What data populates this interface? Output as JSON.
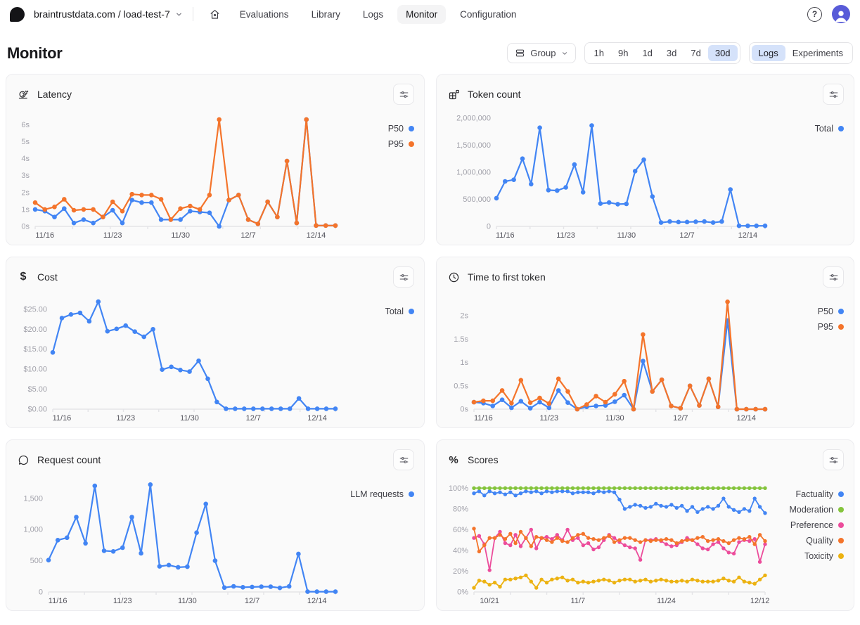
{
  "header": {
    "workspace": "braintrustdata.com / load-test-7",
    "nav": [
      {
        "label": "Evaluations",
        "active": false
      },
      {
        "label": "Library",
        "active": false
      },
      {
        "label": "Logs",
        "active": false
      },
      {
        "label": "Monitor",
        "active": true
      },
      {
        "label": "Configuration",
        "active": false
      }
    ],
    "help_label": "?"
  },
  "page": {
    "title": "Monitor"
  },
  "toolbar": {
    "group_label": "Group",
    "time_ranges": [
      "1h",
      "9h",
      "1d",
      "3d",
      "7d",
      "30d"
    ],
    "active_time_range": "30d",
    "view_toggle": [
      "Logs",
      "Experiments"
    ],
    "active_view": "Logs"
  },
  "colors": {
    "blue": "#4285f4",
    "orange": "#f4742b",
    "green": "#84c43c",
    "pink": "#ec4c9b",
    "yellow": "#ecb211",
    "active_pill": "#d5e2fa",
    "axis": "#e4e4e7",
    "y_label": "#a1a1aa",
    "x_label": "#52525b"
  },
  "charts": [
    {
      "id": "latency",
      "title": "Latency",
      "icon": "snail-icon",
      "chart_data": {
        "type": "line",
        "ylim": [
          0,
          6.55
        ],
        "yticks": [
          {
            "v": 0,
            "label": "0s"
          },
          {
            "v": 1,
            "label": "1s"
          },
          {
            "v": 2,
            "label": "2s"
          },
          {
            "v": 3,
            "label": "3s"
          },
          {
            "v": 4,
            "label": "4s"
          },
          {
            "v": 5,
            "label": "5s"
          },
          {
            "v": 6,
            "label": "6s"
          }
        ],
        "xticks": [
          {
            "i": 1,
            "label": "11/16"
          },
          {
            "i": 8,
            "label": "11/23"
          },
          {
            "i": 15,
            "label": "11/30"
          },
          {
            "i": 22,
            "label": "12/7"
          },
          {
            "i": 29,
            "label": "12/14"
          }
        ],
        "series": [
          {
            "name": "P50",
            "color": "#4285f4",
            "values": [
              1.0,
              0.9,
              0.55,
              1.05,
              0.2,
              0.4,
              0.2,
              0.55,
              0.95,
              0.2,
              1.55,
              1.4,
              1.4,
              0.4,
              0.4,
              0.4,
              0.9,
              0.85,
              0.8,
              0.0,
              1.55,
              1.85,
              0.4,
              0.15,
              1.45,
              0.55,
              3.85,
              0.2,
              6.3,
              0.05,
              0.05,
              0.05
            ]
          },
          {
            "name": "P95",
            "color": "#f4742b",
            "values": [
              1.4,
              1.0,
              1.15,
              1.6,
              0.95,
              1.0,
              1.0,
              0.55,
              1.45,
              0.9,
              1.9,
              1.85,
              1.85,
              1.6,
              0.4,
              1.05,
              1.2,
              1.0,
              1.85,
              6.3,
              1.55,
              1.85,
              0.4,
              0.15,
              1.45,
              0.55,
              3.85,
              0.2,
              6.3,
              0.05,
              0.05,
              0.05
            ]
          }
        ]
      }
    },
    {
      "id": "token-count",
      "title": "Token count",
      "icon": "token-icon",
      "chart_data": {
        "type": "line",
        "ylim": [
          0,
          2050000
        ],
        "yticks": [
          {
            "v": 0,
            "label": "0"
          },
          {
            "v": 500000,
            "label": "500,000"
          },
          {
            "v": 1000000,
            "label": "1,000,000"
          },
          {
            "v": 1500000,
            "label": "1,500,000"
          },
          {
            "v": 2000000,
            "label": "2,000,000"
          }
        ],
        "xticks": [
          {
            "i": 1,
            "label": "11/16"
          },
          {
            "i": 8,
            "label": "11/23"
          },
          {
            "i": 15,
            "label": "11/30"
          },
          {
            "i": 22,
            "label": "12/7"
          },
          {
            "i": 29,
            "label": "12/14"
          }
        ],
        "series": [
          {
            "name": "Total",
            "color": "#4285f4",
            "values": [
              520000,
              830000,
              860000,
              1250000,
              780000,
              1820000,
              670000,
              660000,
              720000,
              1140000,
              630000,
              1860000,
              420000,
              440000,
              410000,
              415000,
              1020000,
              1230000,
              550000,
              70000,
              90000,
              80000,
              80000,
              85000,
              90000,
              70000,
              90000,
              680000,
              10000,
              10000,
              10000,
              10000
            ]
          }
        ]
      }
    },
    {
      "id": "cost",
      "title": "Cost",
      "icon": "dollar-icon",
      "chart_data": {
        "type": "line",
        "ylim": [
          0,
          27.8
        ],
        "yticks": [
          {
            "v": 0,
            "label": "$0.00"
          },
          {
            "v": 5,
            "label": "$5.00"
          },
          {
            "v": 10,
            "label": "$10.00"
          },
          {
            "v": 15,
            "label": "$15.00"
          },
          {
            "v": 20,
            "label": "$20.00"
          },
          {
            "v": 25,
            "label": "$25.00"
          }
        ],
        "xticks": [
          {
            "i": 1,
            "label": "11/16"
          },
          {
            "i": 8,
            "label": "11/23"
          },
          {
            "i": 15,
            "label": "11/30"
          },
          {
            "i": 22,
            "label": "12/7"
          },
          {
            "i": 29,
            "label": "12/14"
          }
        ],
        "series": [
          {
            "name": "Total",
            "color": "#4285f4",
            "values": [
              14.2,
              22.8,
              23.7,
              24.1,
              22.0,
              26.9,
              19.5,
              20.1,
              20.9,
              19.4,
              18.1,
              20.0,
              9.9,
              10.6,
              9.8,
              9.4,
              12.1,
              7.6,
              1.8,
              0.1,
              0.1,
              0.1,
              0.1,
              0.1,
              0.1,
              0.1,
              0.1,
              2.7,
              0.1,
              0.1,
              0.1,
              0.1
            ]
          }
        ]
      }
    },
    {
      "id": "time-to-first-token",
      "title": "Time to first token",
      "icon": "clock-icon",
      "chart_data": {
        "type": "line",
        "ylim": [
          0,
          2.38
        ],
        "yticks": [
          {
            "v": 0,
            "label": "0s"
          },
          {
            "v": 0.5,
            "label": "0.5s"
          },
          {
            "v": 1,
            "label": "1s"
          },
          {
            "v": 1.5,
            "label": "1.5s"
          },
          {
            "v": 2,
            "label": "2s"
          }
        ],
        "xticks": [
          {
            "i": 1,
            "label": "11/16"
          },
          {
            "i": 8,
            "label": "11/23"
          },
          {
            "i": 15,
            "label": "11/30"
          },
          {
            "i": 22,
            "label": "12/7"
          },
          {
            "i": 29,
            "label": "12/14"
          }
        ],
        "series": [
          {
            "name": "P50",
            "color": "#4285f4",
            "values": [
              0.15,
              0.13,
              0.07,
              0.2,
              0.03,
              0.17,
              0.02,
              0.15,
              0.03,
              0.4,
              0.14,
              0.0,
              0.05,
              0.07,
              0.08,
              0.16,
              0.3,
              0.0,
              1.03,
              0.38,
              0.63,
              0.07,
              0.02,
              0.5,
              0.08,
              0.65,
              0.05,
              1.9,
              0.0,
              0.0,
              0.0,
              0.0
            ]
          },
          {
            "name": "P95",
            "color": "#f4742b",
            "values": [
              0.15,
              0.18,
              0.18,
              0.4,
              0.13,
              0.62,
              0.14,
              0.24,
              0.12,
              0.65,
              0.38,
              0.0,
              0.1,
              0.28,
              0.15,
              0.32,
              0.6,
              0.0,
              1.6,
              0.38,
              0.63,
              0.07,
              0.02,
              0.5,
              0.08,
              0.65,
              0.05,
              2.3,
              0.0,
              0.0,
              0.0,
              0.0
            ]
          }
        ]
      }
    },
    {
      "id": "request-count",
      "title": "Request count",
      "icon": "chat-bubble-icon",
      "chart_data": {
        "type": "line",
        "ylim": [
          0,
          1780
        ],
        "yticks": [
          {
            "v": 0,
            "label": "0"
          },
          {
            "v": 500,
            "label": "500"
          },
          {
            "v": 1000,
            "label": "1,000"
          },
          {
            "v": 1500,
            "label": "1,500"
          }
        ],
        "xticks": [
          {
            "i": 1,
            "label": "11/16"
          },
          {
            "i": 8,
            "label": "11/23"
          },
          {
            "i": 15,
            "label": "11/30"
          },
          {
            "i": 22,
            "label": "12/7"
          },
          {
            "i": 29,
            "label": "12/14"
          }
        ],
        "series": [
          {
            "name": "LLM requests",
            "color": "#4285f4",
            "values": [
              510,
              830,
              870,
              1200,
              780,
              1700,
              660,
              650,
              710,
              1200,
              620,
              1720,
              410,
              430,
              395,
              405,
              950,
              1410,
              500,
              70,
              90,
              75,
              80,
              85,
              85,
              65,
              90,
              610,
              5,
              5,
              5,
              5
            ]
          }
        ]
      }
    },
    {
      "id": "scores",
      "title": "Scores",
      "icon": "percent-icon",
      "chart_data": {
        "type": "line",
        "ylim": [
          0,
          107
        ],
        "yticks": [
          {
            "v": 0,
            "label": "0%"
          },
          {
            "v": 20,
            "label": "20%"
          },
          {
            "v": 40,
            "label": "40%"
          },
          {
            "v": 60,
            "label": "60%"
          },
          {
            "v": 80,
            "label": "80%"
          },
          {
            "v": 100,
            "label": "100%"
          }
        ],
        "xticks": [
          {
            "i": 3,
            "label": "10/21"
          },
          {
            "i": 20,
            "label": "11/7"
          },
          {
            "i": 37,
            "label": "11/24"
          },
          {
            "i": 55,
            "label": "12/12"
          }
        ],
        "series": [
          {
            "name": "Factuality",
            "color": "#4285f4",
            "values": [
              95,
              97,
              93,
              97,
              95,
              96,
              94,
              96,
              93,
              95,
              97,
              96,
              97,
              95,
              97,
              96,
              97,
              97,
              97,
              95,
              96,
              96,
              96,
              95,
              97,
              96,
              97,
              96,
              89,
              80,
              82,
              84,
              83,
              81,
              82,
              85,
              83,
              82,
              84,
              81,
              83,
              78,
              82,
              77,
              80,
              82,
              80,
              83,
              90,
              82,
              79,
              77,
              80,
              78,
              90,
              82,
              76
            ]
          },
          {
            "name": "Moderation",
            "color": "#84c43c",
            "values": [
              100,
              100,
              100,
              100,
              100,
              100,
              100,
              100,
              100,
              100,
              100,
              100,
              100,
              100,
              100,
              100,
              100,
              100,
              100,
              100,
              100,
              100,
              100,
              100,
              100,
              100,
              100,
              100,
              100,
              100,
              100,
              100,
              100,
              100,
              100,
              100,
              100,
              100,
              100,
              100,
              100,
              100,
              100,
              100,
              100,
              100,
              100,
              100,
              100,
              100,
              100,
              100,
              100,
              100,
              100,
              100,
              100
            ]
          },
          {
            "name": "Preference",
            "color": "#ec4c9b",
            "values": [
              52,
              54,
              46,
              21,
              52,
              58,
              47,
              45,
              55,
              44,
              52,
              60,
              42,
              52,
              53,
              51,
              55,
              50,
              60,
              50,
              52,
              45,
              47,
              41,
              43,
              50,
              55,
              52,
              48,
              45,
              43,
              42,
              31,
              50,
              50,
              51,
              49,
              46,
              44,
              45,
              48,
              52,
              50,
              46,
              42,
              41,
              46,
              48,
              42,
              38,
              37,
              48,
              50,
              49,
              51,
              29,
              46
            ]
          },
          {
            "name": "Quality",
            "color": "#f4742b",
            "values": [
              61,
              39,
              45,
              52,
              52,
              55,
              51,
              56,
              47,
              58,
              52,
              44,
              53,
              52,
              50,
              48,
              52,
              49,
              48,
              52,
              55,
              56,
              52,
              51,
              50,
              52,
              54,
              48,
              50,
              52,
              52,
              50,
              48,
              50,
              49,
              50,
              50,
              51,
              50,
              47,
              49,
              50,
              50,
              52,
              53,
              49,
              50,
              51,
              49,
              47,
              50,
              52,
              51,
              53,
              46,
              55,
              49
            ]
          },
          {
            "name": "Toxicity",
            "color": "#ecb211",
            "values": [
              4,
              11,
              10,
              7,
              9,
              5,
              12,
              12,
              13,
              14,
              16,
              10,
              4,
              12,
              9,
              12,
              13,
              14,
              11,
              12,
              9,
              10,
              9,
              10,
              11,
              12,
              11,
              9,
              11,
              12,
              12,
              10,
              11,
              12,
              10,
              11,
              12,
              11,
              10,
              10,
              11,
              10,
              12,
              11,
              10,
              10,
              10,
              11,
              13,
              11,
              10,
              14,
              10,
              9,
              8,
              12,
              16
            ]
          }
        ]
      }
    }
  ]
}
